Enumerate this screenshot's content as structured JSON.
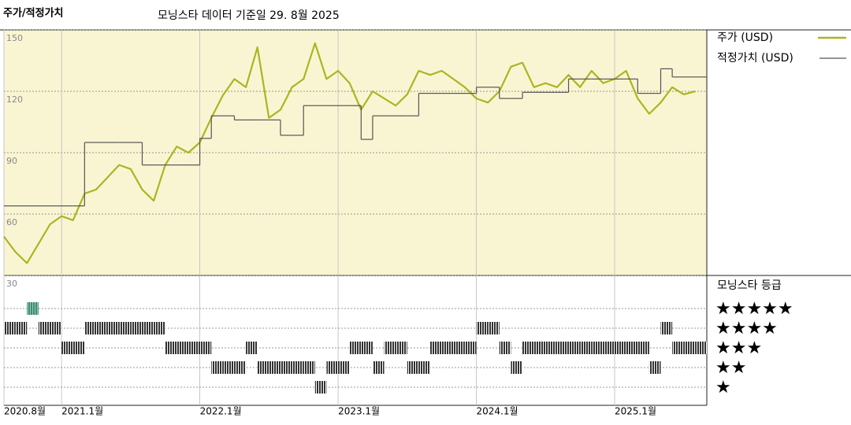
{
  "chart_data": {
    "type": "line",
    "title": "주가/적정가치",
    "subtitle": "모닝스타 데이터 기준일 29. 8월 2025",
    "x": [
      "2020-08",
      "2020-09",
      "2020-10",
      "2020-11",
      "2020-12",
      "2021-01",
      "2021-02",
      "2021-03",
      "2021-04",
      "2021-05",
      "2021-06",
      "2021-07",
      "2021-08",
      "2021-09",
      "2021-10",
      "2021-11",
      "2021-12",
      "2022-01",
      "2022-02",
      "2022-03",
      "2022-04",
      "2022-05",
      "2022-06",
      "2022-07",
      "2022-08",
      "2022-09",
      "2022-10",
      "2022-11",
      "2022-12",
      "2023-01",
      "2023-02",
      "2023-03",
      "2023-04",
      "2023-05",
      "2023-06",
      "2023-07",
      "2023-08",
      "2023-09",
      "2023-10",
      "2023-11",
      "2023-12",
      "2024-01",
      "2024-02",
      "2024-03",
      "2024-04",
      "2024-05",
      "2024-06",
      "2024-07",
      "2024-08",
      "2024-09",
      "2024-10",
      "2024-11",
      "2024-12",
      "2025-01",
      "2025-02",
      "2025-03",
      "2025-04",
      "2025-05",
      "2025-06",
      "2025-07",
      "2025-08"
    ],
    "xlim": [
      "2020-08",
      "2025-09"
    ],
    "xticks": [
      {
        "value": "2020-08",
        "label": "2020.8월"
      },
      {
        "value": "2021-01",
        "label": "2021.1월"
      },
      {
        "value": "2022-01",
        "label": "2022.1월"
      },
      {
        "value": "2023-01",
        "label": "2023.1월"
      },
      {
        "value": "2024-01",
        "label": "2024.1월"
      },
      {
        "value": "2025-01",
        "label": "2025.1월"
      }
    ],
    "ylim": [
      30,
      150
    ],
    "yticks": [
      30,
      60,
      90,
      120,
      150
    ],
    "grid": true,
    "series": [
      {
        "name": "주가 (USD)",
        "color": "#abb521",
        "values": [
          49,
          41.5,
          36,
          45.5,
          55,
          59,
          57,
          70,
          72,
          78,
          84,
          82,
          72,
          66.5,
          84,
          93,
          90,
          95,
          107,
          118,
          126,
          122,
          141.5,
          107,
          111,
          122,
          126,
          143.5,
          126,
          130,
          124,
          111,
          120,
          116.5,
          113,
          118.5,
          130,
          128,
          130,
          126,
          122,
          116.5,
          114.5,
          120,
          132,
          134,
          122,
          124,
          122,
          128,
          122,
          130,
          124,
          126,
          130,
          116.5,
          109,
          114.5,
          122,
          118.5,
          120
        ]
      },
      {
        "name": "적정가치 (USD)",
        "color": "#555555",
        "step": true,
        "values": [
          64,
          64,
          64,
          64,
          64,
          64,
          64,
          95,
          95,
          95,
          95,
          95,
          84,
          84,
          84,
          84,
          84,
          97,
          108,
          108,
          106,
          106,
          106,
          106,
          98.5,
          98.5,
          113,
          113,
          113,
          113,
          113,
          96.5,
          108,
          108,
          108,
          108,
          119,
          119,
          119,
          119,
          119,
          122,
          122,
          116.5,
          116.5,
          119.5,
          119.5,
          119.5,
          119.5,
          126,
          126,
          126,
          126,
          126,
          126,
          119,
          119,
          131,
          127,
          127,
          127
        ]
      }
    ],
    "rating": {
      "name": "모닝스타 등급",
      "color": "#333333",
      "top_color": "#3d8c74",
      "levels": [
        {
          "value": 5,
          "label": "★★★★★"
        },
        {
          "value": 4,
          "label": "★★★★"
        },
        {
          "value": 3,
          "label": "★★★"
        },
        {
          "value": 2,
          "label": "★★"
        },
        {
          "value": 1,
          "label": "★"
        }
      ],
      "values": [
        4,
        4,
        5,
        4,
        4,
        3,
        3,
        4,
        4,
        4,
        4,
        4,
        4,
        4,
        3,
        3,
        3,
        3,
        2,
        2,
        2,
        3,
        2,
        2,
        2,
        2,
        2,
        1,
        2,
        2,
        3,
        3,
        2,
        3,
        3,
        2,
        2,
        3,
        3,
        3,
        3,
        4,
        4,
        3,
        2,
        3,
        3,
        3,
        3,
        3,
        3,
        3,
        3,
        3,
        3,
        3,
        2,
        4,
        3,
        3,
        3
      ]
    }
  }
}
